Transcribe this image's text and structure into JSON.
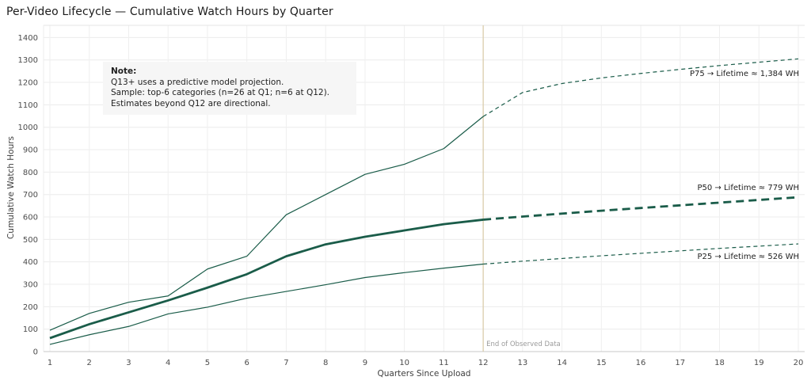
{
  "title": "Per-Video Lifecycle — Cumulative Watch Hours by Quarter",
  "note": {
    "heading": "Note:",
    "lines": [
      "Q13+ uses a predictive model projection.",
      "Sample: top-6 categories (n=26 at Q1; n=6 at Q12).",
      "Estimates beyond Q12 are directional."
    ]
  },
  "chart_data": {
    "type": "line",
    "title": "Per-Video Lifecycle — Cumulative Watch Hours by Quarter",
    "xlabel": "Quarters Since Upload",
    "ylabel": "Cumulative Watch Hours",
    "x": [
      1,
      2,
      3,
      4,
      5,
      6,
      7,
      8,
      9,
      10,
      11,
      12,
      13,
      14,
      15,
      16,
      17,
      18,
      19,
      20
    ],
    "xlim": [
      1,
      20
    ],
    "ylim": [
      0,
      1400
    ],
    "y_ticks": [
      0,
      100,
      200,
      300,
      400,
      500,
      600,
      700,
      800,
      900,
      1000,
      1100,
      1200,
      1300,
      1400
    ],
    "grid": true,
    "legend_position": "inline-right-labels",
    "observed_through_x": 12,
    "projection_style": "dashed beyond Q12",
    "line_color": "#1a5c49",
    "end_of_observed": {
      "x": 12,
      "label": "End of Observed Data",
      "line_color": "#d8c9a6"
    },
    "series": [
      {
        "name": "P75",
        "label": "P75 → Lifetime ≈ 1,384 WH",
        "lifetime_wh": 1384,
        "emphasis": false,
        "values": [
          95,
          170,
          220,
          248,
          368,
          425,
          610,
          700,
          790,
          835,
          905,
          1048,
          1155,
          1195,
          1220,
          1240,
          1258,
          1275,
          1290,
          1305
        ]
      },
      {
        "name": "P50",
        "label": "P50 → Lifetime ≈ 779 WH",
        "lifetime_wh": 779,
        "emphasis": true,
        "values": [
          60,
          122,
          175,
          228,
          285,
          345,
          425,
          478,
          512,
          540,
          568,
          588,
          602,
          615,
          628,
          640,
          652,
          664,
          676,
          688
        ]
      },
      {
        "name": "P25",
        "label": "P25 → Lifetime ≈ 526 WH",
        "lifetime_wh": 526,
        "emphasis": false,
        "values": [
          32,
          75,
          112,
          168,
          198,
          238,
          268,
          298,
          330,
          352,
          372,
          390,
          403,
          415,
          427,
          438,
          449,
          460,
          470,
          480
        ]
      }
    ]
  },
  "colors": {
    "line_green": "#1a5c49",
    "grid": "#ececec",
    "axis": "#c8c8c8",
    "tick_text": "#4c4c4c",
    "end_marker": "#d8c9a6",
    "note_bg": "#f6f6f6"
  }
}
